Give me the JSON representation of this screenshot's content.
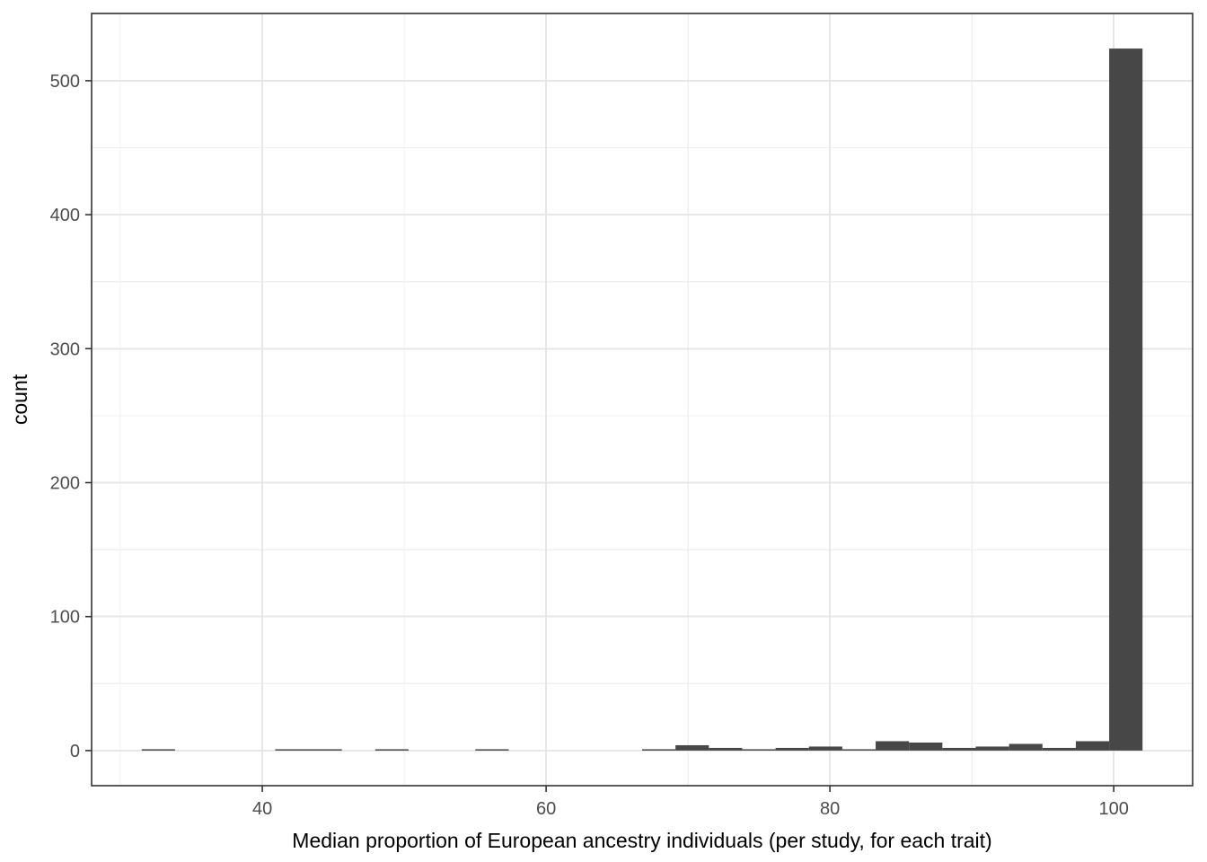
{
  "chart_data": {
    "type": "bar",
    "subtype": "histogram",
    "title": "",
    "xlabel": "Median proportion of European ancestry individuals (per study, for each trait)",
    "ylabel": "count",
    "xlim": [
      27.97,
      105.56
    ],
    "ylim": [
      -26.2,
      550.2
    ],
    "x_ticks": [
      40,
      60,
      80,
      100
    ],
    "x_minor_gridlines": [
      30,
      50,
      70,
      90
    ],
    "y_ticks": [
      0,
      100,
      200,
      300,
      400,
      500
    ],
    "y_minor_gridlines": [
      50,
      150,
      250,
      350,
      450,
      550
    ],
    "grid": true,
    "legend_position": "none",
    "bins": {
      "start": 31.5,
      "binwidth": 2.351,
      "counts": [
        1,
        0,
        0,
        0,
        1,
        1,
        0,
        1,
        0,
        0,
        1,
        0,
        0,
        0,
        0,
        1,
        4,
        2,
        1,
        2,
        3,
        1,
        7,
        6,
        2,
        3,
        5,
        2,
        7,
        524
      ]
    },
    "colors": {
      "bar_fill": "#474747",
      "grid_major": "#e7e7e7",
      "grid_minor": "#f0f0f0",
      "panel_border": "#333333",
      "tick_mark": "#333333",
      "tick_label": "#4d4d4d",
      "axis_title": "#000000",
      "background": "#ffffff"
    }
  }
}
